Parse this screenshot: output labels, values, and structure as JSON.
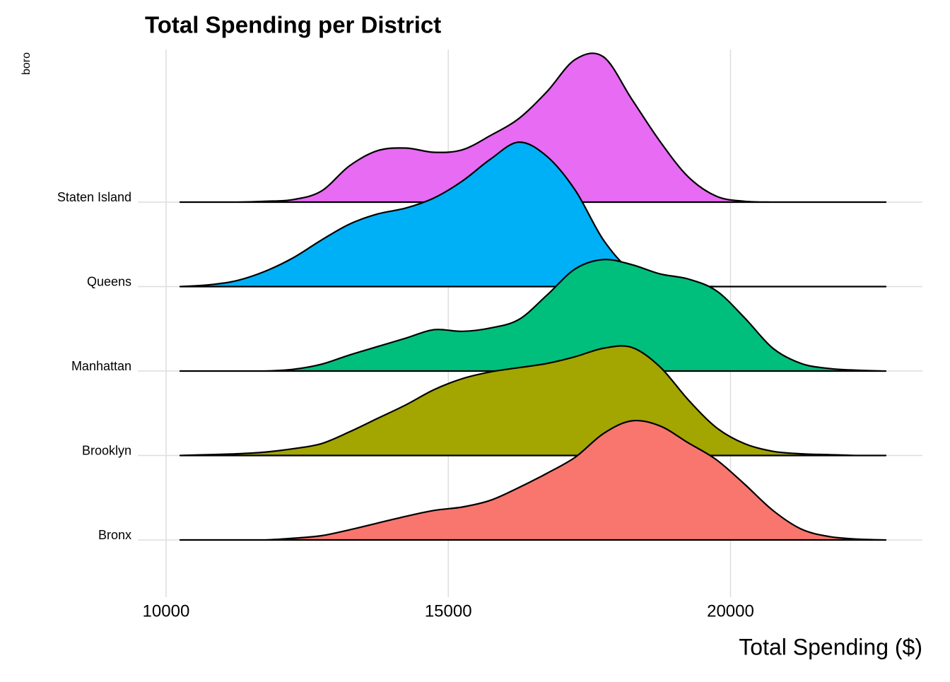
{
  "chart_data": {
    "type": "ridgeline",
    "title": "Total Spending per District",
    "x_label": "Total Spending ($)",
    "y_label": "boro",
    "categories": [
      "Bronx",
      "Brooklyn",
      "Manhattan",
      "Queens",
      "Staten Island"
    ],
    "x": [
      10250,
      10750,
      11250,
      11750,
      12250,
      12750,
      13250,
      13750,
      14250,
      14750,
      15250,
      15750,
      16250,
      16750,
      17250,
      17750,
      18250,
      18750,
      19250,
      19750,
      20250,
      20750,
      21250,
      21750,
      22250,
      22750
    ],
    "series": [
      {
        "name": "Bronx",
        "color": "#f8766d",
        "values": [
          0,
          0,
          0,
          0,
          0.02,
          0.05,
          0.12,
          0.2,
          0.28,
          0.35,
          0.39,
          0.47,
          0.62,
          0.79,
          0.98,
          1.26,
          1.41,
          1.35,
          1.15,
          0.95,
          0.66,
          0.35,
          0.13,
          0.04,
          0.01,
          0
        ]
      },
      {
        "name": "Brooklyn",
        "color": "#a3a500",
        "values": [
          0,
          0.01,
          0.02,
          0.04,
          0.08,
          0.14,
          0.28,
          0.44,
          0.6,
          0.78,
          0.91,
          0.99,
          1.04,
          1.09,
          1.17,
          1.27,
          1.28,
          1.05,
          0.66,
          0.33,
          0.14,
          0.05,
          0.02,
          0.01,
          0,
          0
        ]
      },
      {
        "name": "Manhattan",
        "color": "#00bf7d",
        "values": [
          0,
          0,
          0,
          0,
          0.02,
          0.08,
          0.19,
          0.29,
          0.39,
          0.49,
          0.47,
          0.51,
          0.61,
          0.9,
          1.21,
          1.32,
          1.26,
          1.15,
          1.09,
          0.95,
          0.63,
          0.27,
          0.09,
          0.03,
          0.01,
          0
        ]
      },
      {
        "name": "Queens",
        "color": "#00b0f6",
        "values": [
          0,
          0.02,
          0.07,
          0.18,
          0.34,
          0.55,
          0.74,
          0.86,
          0.93,
          1.05,
          1.25,
          1.51,
          1.71,
          1.54,
          1.14,
          0.55,
          0.18,
          0.05,
          0.01,
          0,
          0,
          0,
          0,
          0,
          0,
          0
        ]
      },
      {
        "name": "Staten Island",
        "color": "#e76bf3",
        "values": [
          0,
          0,
          0,
          0.01,
          0.03,
          0.13,
          0.43,
          0.61,
          0.64,
          0.59,
          0.62,
          0.79,
          0.99,
          1.31,
          1.69,
          1.72,
          1.22,
          0.72,
          0.3,
          0.07,
          0.01,
          0,
          0,
          0,
          0,
          0
        ]
      }
    ],
    "xlim": [
      9500,
      23400
    ],
    "xticks": [
      10000,
      15000,
      20000
    ],
    "grid": true
  }
}
